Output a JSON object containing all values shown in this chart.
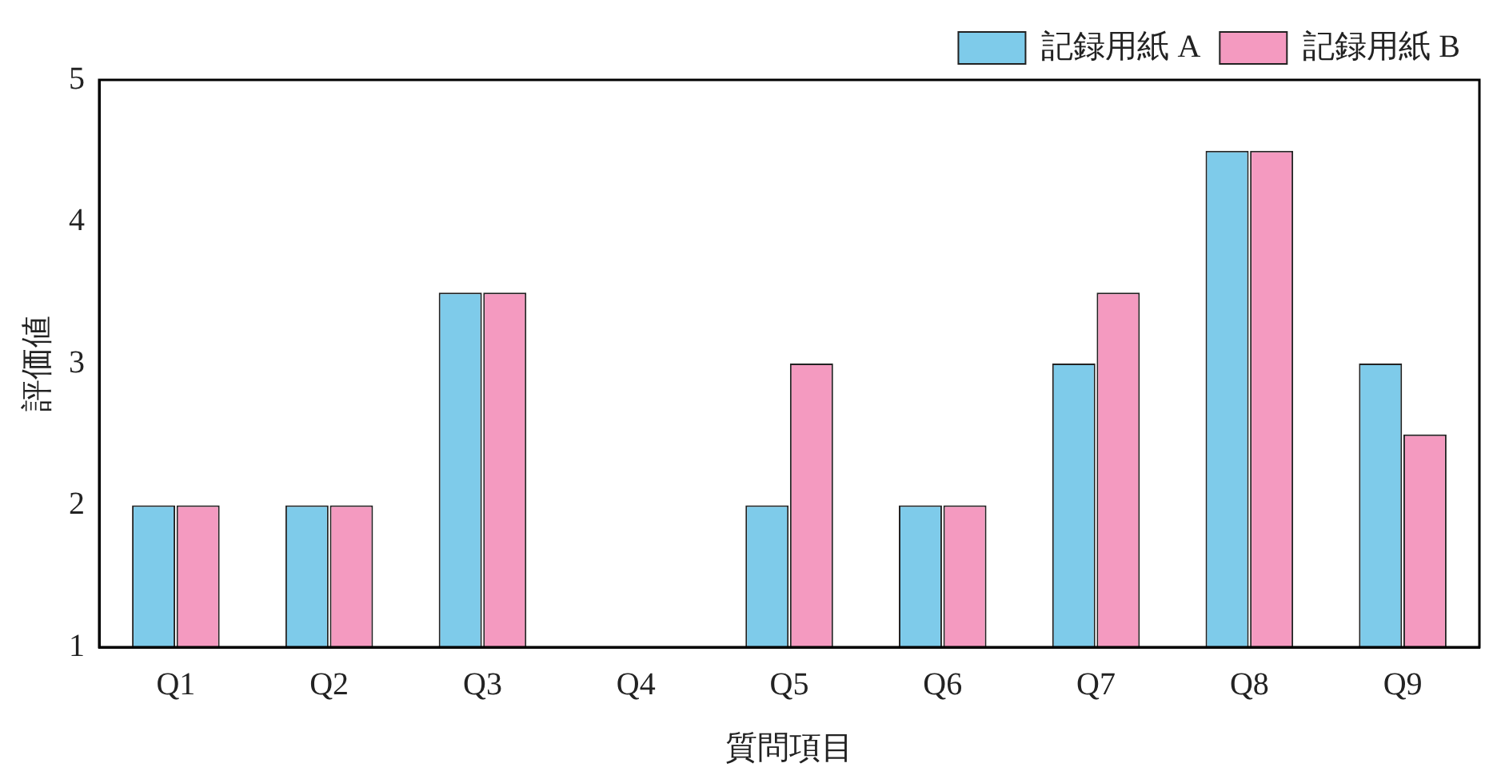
{
  "chart_data": {
    "type": "bar",
    "xlabel": "質問項目",
    "ylabel": "評価値",
    "categories": [
      "Q1",
      "Q2",
      "Q3",
      "Q4",
      "Q5",
      "Q6",
      "Q7",
      "Q8",
      "Q9"
    ],
    "series": [
      {
        "name": "記録用紙 A",
        "color": "#7ecbea",
        "values": [
          2,
          2,
          3.5,
          null,
          2,
          2,
          3,
          4.5,
          3
        ]
      },
      {
        "name": "記録用紙 B",
        "color": "#f49ac0",
        "values": [
          2,
          2,
          3.5,
          null,
          3,
          2,
          3.5,
          4.5,
          2.5
        ]
      }
    ],
    "ylim": [
      1,
      5
    ],
    "yticks": [
      1,
      2,
      3,
      4,
      5
    ],
    "grid": false,
    "legend": "top right"
  }
}
